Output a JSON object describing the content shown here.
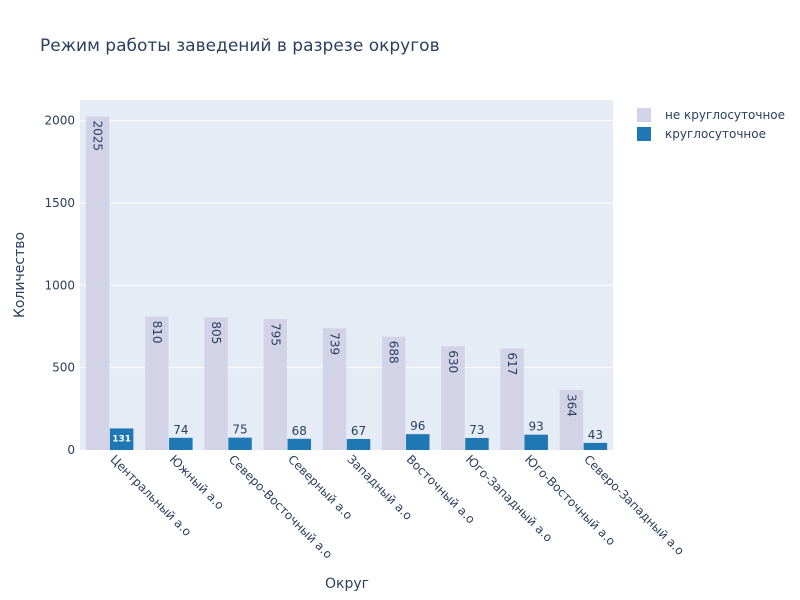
{
  "chart_data": {
    "type": "bar",
    "title": "Режим работы заведений в разрезе округов",
    "xlabel": "Округ",
    "ylabel": "Количество",
    "ylim": [
      0,
      2125
    ],
    "yticks": [
      0,
      500,
      1000,
      1500,
      2000
    ],
    "grid": true,
    "legend_position": "top-right",
    "categories": [
      "Центральный а.о",
      "Южный а.о",
      "Северо-Восточный а.о",
      "Северный а.о",
      "Западный а.о",
      "Восточный а.о",
      "Юго-Западный а.о",
      "Юго-Восточный а.о",
      "Северо-Западный а.о"
    ],
    "series": [
      {
        "name": "не круглосуточное",
        "color": "#d3d3e8",
        "values": [
          2025,
          810,
          805,
          795,
          739,
          688,
          630,
          617,
          364
        ]
      },
      {
        "name": "круглосуточное",
        "color": "#1f77b4",
        "values": [
          131,
          74,
          75,
          68,
          67,
          96,
          73,
          93,
          43
        ]
      }
    ]
  }
}
